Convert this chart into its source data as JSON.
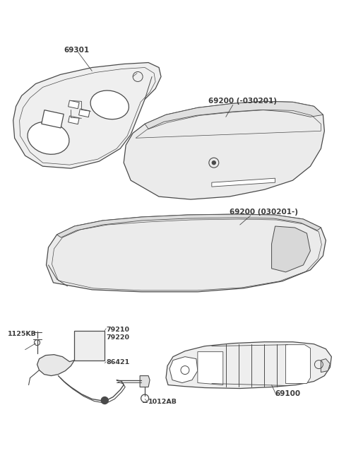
{
  "bg_color": "#ffffff",
  "line_color": "#4a4a4a",
  "fill_color": "#f0f0f0",
  "text_color": "#3a3a3a",
  "fig_width": 4.8,
  "fig_height": 6.55,
  "dpi": 100
}
